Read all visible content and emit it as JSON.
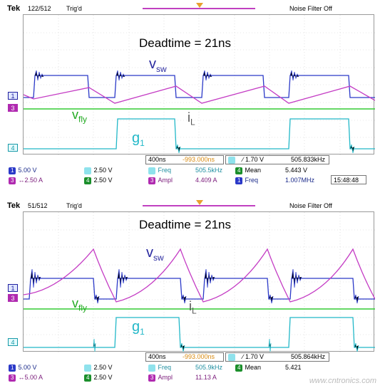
{
  "panels": [
    {
      "brand": "Tek",
      "acq_count": "122/512",
      "trig_status": "Trig'd",
      "filter": "Noise Filter Off",
      "annotations": {
        "deadtime": "Deadtime = 21ns",
        "vsw": "v",
        "vsw_sub": "sw",
        "vfly": "v",
        "vfly_sub": "fly",
        "il": "i",
        "il_sub": "L",
        "g1": "g",
        "g1_sub": "1"
      },
      "channel_markers": [
        "1",
        "3",
        "4"
      ],
      "readout": {
        "timebase": "400ns",
        "trig_pos": "-993.000ns",
        "trig_level": "∕ 1.70 V",
        "trig_freq": "505.833kHz",
        "ch1_scale": "5.00 V",
        "ch3_scale": "↔2.50 A",
        "ch2_scale": "2.50 V",
        "ch4_scale": "2.50 V",
        "m1_label": "Freq",
        "m1_value": "505.5kHz",
        "m2_label": "Ampl",
        "m2_value": "4.409 A",
        "m3_label": "Mean",
        "m3_value": "5.443 V",
        "m4_label": "Freq",
        "m4_value": "1.007MHz",
        "clock": "15:48:48"
      }
    },
    {
      "brand": "Tek",
      "acq_count": "51/512",
      "trig_status": "Trig'd",
      "filter": "Noise Filter Off",
      "annotations": {
        "deadtime": "Deadtime = 21ns",
        "vsw": "v",
        "vsw_sub": "sw",
        "vfly": "v",
        "vfly_sub": "fly",
        "il": "i",
        "il_sub": "L",
        "g1": "g",
        "g1_sub": "1"
      },
      "channel_markers": [
        "1",
        "3",
        "4"
      ],
      "readout": {
        "timebase": "400ns",
        "trig_pos": "-993.000ns",
        "trig_level": "∕ 1.70 V",
        "trig_freq": "505.864kHz",
        "ch1_scale": "5.00 V",
        "ch3_scale": "↔5.00 A",
        "ch2_scale": "2.50 V",
        "ch4_scale": "2.50 V",
        "m1_label": "Freq",
        "m1_value": "505.9kHz",
        "m2_label": "Ampl",
        "m2_value": "11.13 A",
        "m3_label": "Mean",
        "m3_value": "5.421",
        "watermark": "www.cntronics.com"
      }
    }
  ],
  "colors": {
    "ch1": "#2b39c8",
    "ch3": "#c43cc4",
    "ch4": "#22b8c8",
    "ref": "#33cc33"
  }
}
